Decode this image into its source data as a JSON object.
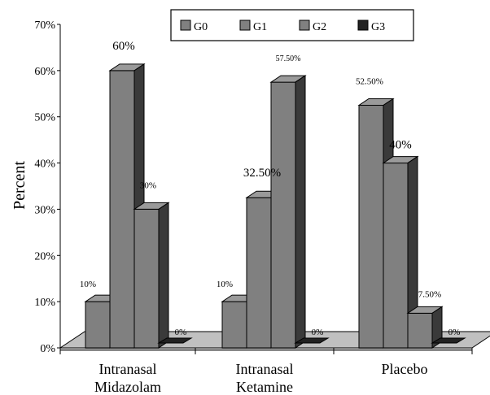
{
  "chart_data": {
    "type": "bar",
    "ylabel": "Percent",
    "ylim": [
      0,
      70
    ],
    "yticks": [
      "0%",
      "10%",
      "20%",
      "30%",
      "40%",
      "50%",
      "60%",
      "70%"
    ],
    "categories": [
      [
        "Intranasal",
        "Midazolam"
      ],
      [
        "Intranasal",
        "Ketamine"
      ],
      [
        "Placebo"
      ]
    ],
    "series": [
      {
        "name": "G0",
        "values": [
          10,
          10,
          52.5
        ],
        "labels": [
          "10%",
          "10%",
          "52.50%"
        ]
      },
      {
        "name": "G1",
        "values": [
          60,
          32.5,
          40
        ],
        "labels": [
          "60%",
          "32.50%",
          "40%"
        ]
      },
      {
        "name": "G2",
        "values": [
          30,
          57.5,
          7.5
        ],
        "labels": [
          "30%",
          "57.50%",
          "7.50%"
        ]
      },
      {
        "name": "G3",
        "values": [
          0,
          0,
          0
        ],
        "labels": [
          "0%",
          "0%",
          "0%"
        ]
      }
    ],
    "legend_position": "top",
    "grid": false,
    "style": "3d-bar",
    "colors": {
      "bar_front": "#808080",
      "bar_top": "#9a9a9a",
      "bar_side": "#3a3a3a",
      "g3_bar": "#222222",
      "floor": "#c0c0c0"
    }
  }
}
